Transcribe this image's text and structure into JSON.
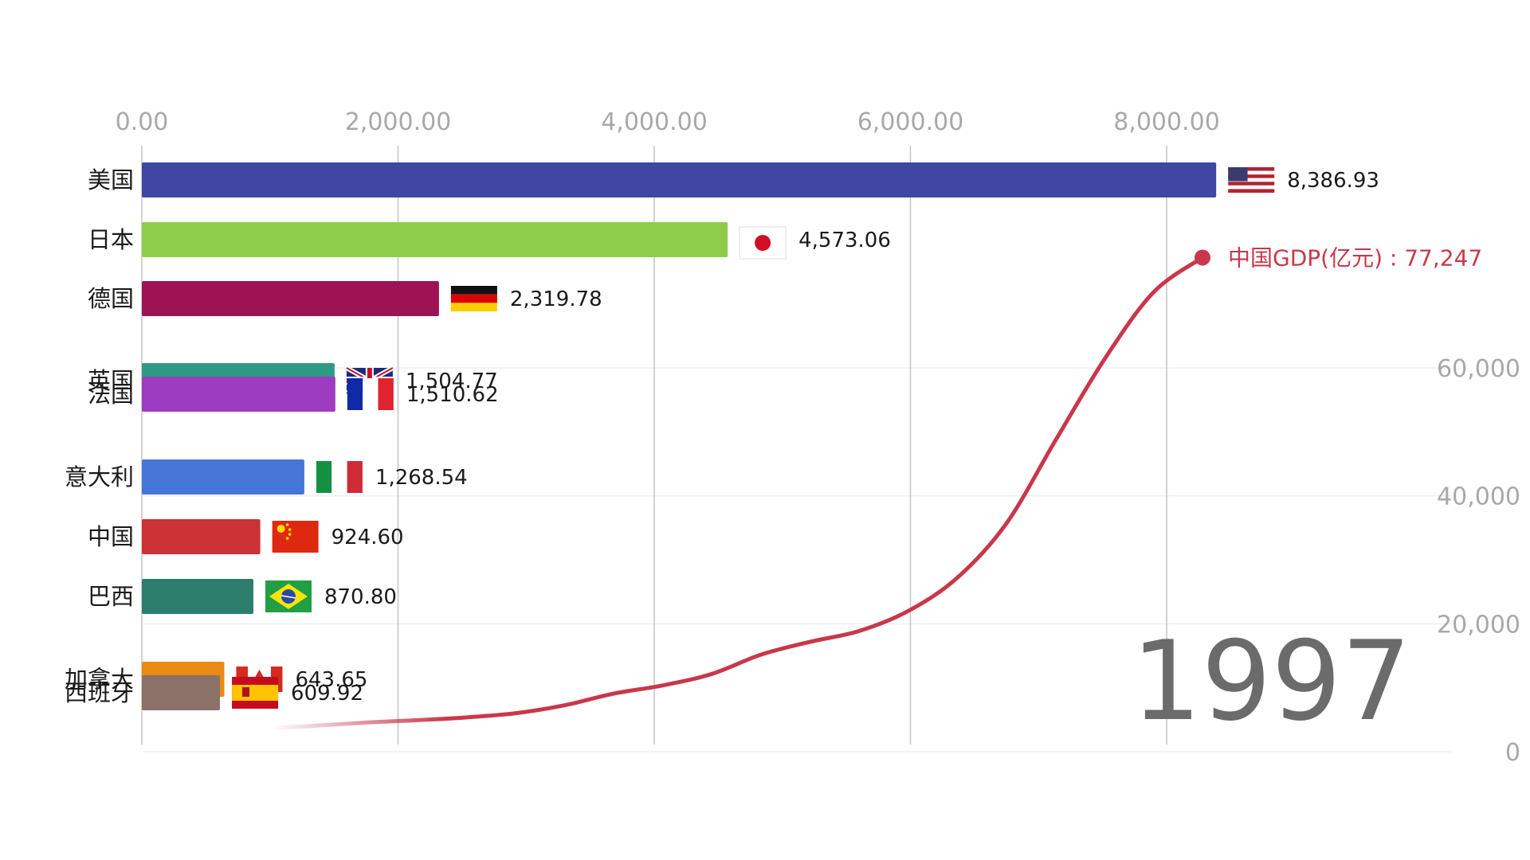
{
  "chart_data": [
    {
      "type": "bar",
      "orientation": "horizontal",
      "categories": [
        "美国",
        "日本",
        "德国",
        "英国",
        "法国",
        "意大利",
        "中国",
        "巴西",
        "加拿大",
        "西班牙"
      ],
      "values": [
        8386.93,
        4573.06,
        2319.78,
        1504.77,
        1510.62,
        1268.54,
        924.6,
        870.8,
        643.65,
        609.92
      ],
      "value_labels": [
        "8,386.93",
        "4,573.06",
        "2,319.78",
        "1,504.77",
        "1,510.62",
        "1,268.54",
        "924.60",
        "870.80",
        "643.65",
        "609.92"
      ],
      "colors": [
        "#3f46a4",
        "#8ecc4c",
        "#9e1353",
        "#2f9a84",
        "#9d3cc0",
        "#4676d8",
        "#cc3236",
        "#2c7d6c",
        "#e88a14",
        "#8a7268"
      ],
      "flags": [
        "us-flag-icon",
        "jp-flag-icon",
        "de-flag-icon",
        "gb-flag-icon",
        "fr-flag-icon",
        "it-flag-icon",
        "cn-flag-icon",
        "br-flag-icon",
        "ca-flag-icon",
        "es-flag-icon"
      ],
      "xlim": [
        0,
        10000
      ],
      "x_ticks": [
        0,
        2000,
        4000,
        6000,
        8000
      ],
      "x_tick_labels": [
        "0.00",
        "2,000.00",
        "4,000.00",
        "6,000.00",
        "8,000.00"
      ],
      "grid": true,
      "year": "1997"
    },
    {
      "type": "line",
      "series": [
        {
          "name": "中国GDP(亿元)",
          "color": "#c8384a",
          "points": [
            [
              1978,
              3679
            ],
            [
              1979,
              4101
            ],
            [
              1980,
              4588
            ],
            [
              1981,
              4936
            ],
            [
              1982,
              5373
            ],
            [
              1983,
              6021
            ],
            [
              1984,
              7279
            ],
            [
              1985,
              9099
            ],
            [
              1986,
              10376
            ],
            [
              1987,
              12175
            ],
            [
              1988,
              15180
            ],
            [
              1989,
              17180
            ],
            [
              1990,
              18873
            ],
            [
              1991,
              22006
            ],
            [
              1992,
              27195
            ],
            [
              1993,
              35673
            ],
            [
              1994,
              48638
            ],
            [
              1995,
              61340
            ],
            [
              1996,
              71814
            ],
            [
              1997,
              77247
            ]
          ]
        }
      ],
      "end_label": "中国GDP(亿元) : 77,247",
      "xlim": [
        1977,
        2000
      ],
      "ylim": [
        0,
        80000
      ],
      "y_ticks": [
        0,
        20000,
        40000,
        60000
      ],
      "y_tick_labels": [
        "0",
        "20,000",
        "40,000",
        "60,000"
      ]
    }
  ]
}
